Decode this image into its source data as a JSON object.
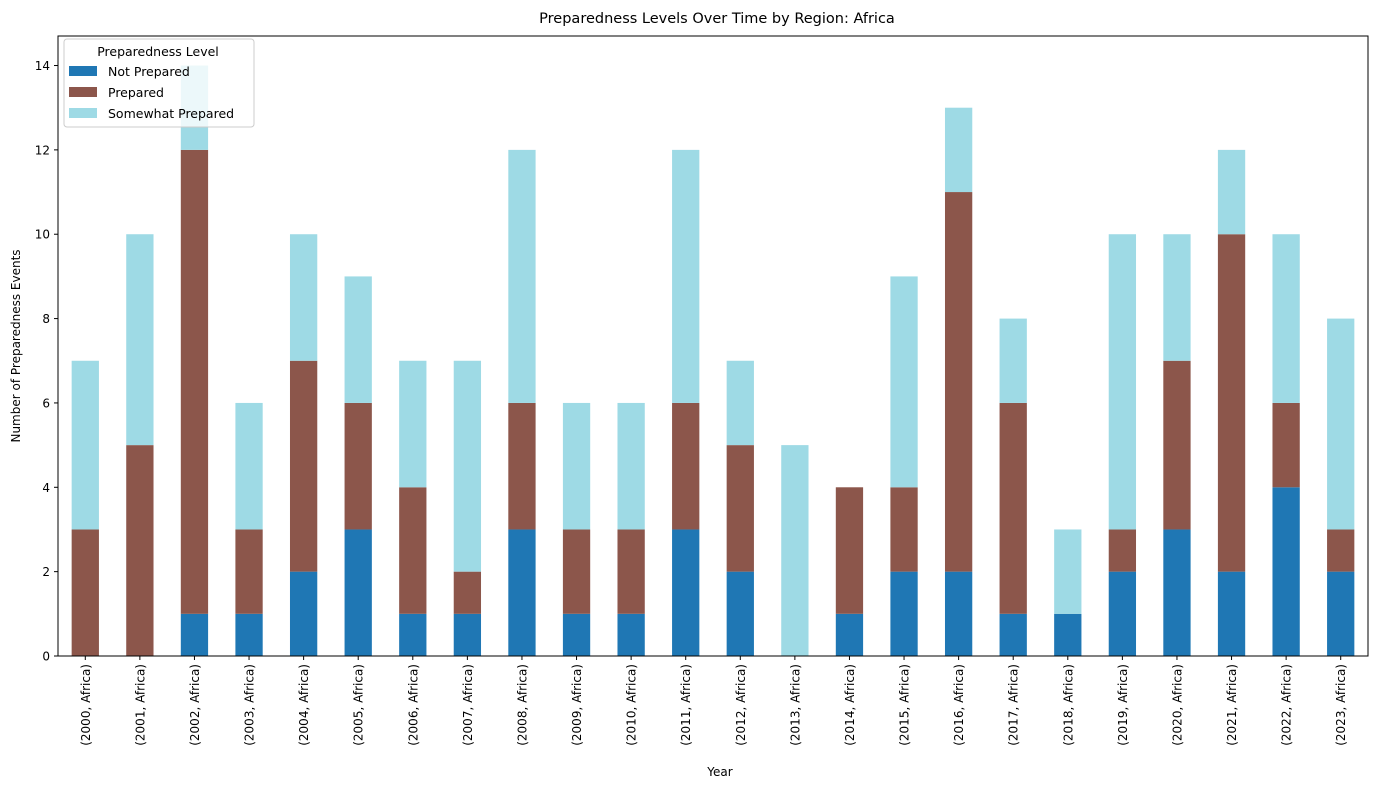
{
  "chart_data": {
    "type": "bar",
    "stacked": true,
    "title": "Preparedness Levels Over Time by Region: Africa",
    "xlabel": "Year",
    "ylabel": "Number of Preparedness Events",
    "ylim": [
      0,
      14.7
    ],
    "yticks": [
      0,
      2,
      4,
      6,
      8,
      10,
      12,
      14
    ],
    "grid": false,
    "legend": {
      "title": "Preparedness Level",
      "placement": "upper-left"
    },
    "categories": [
      "(2000, Africa)",
      "(2001, Africa)",
      "(2002, Africa)",
      "(2003, Africa)",
      "(2004, Africa)",
      "(2005, Africa)",
      "(2006, Africa)",
      "(2007, Africa)",
      "(2008, Africa)",
      "(2009, Africa)",
      "(2010, Africa)",
      "(2011, Africa)",
      "(2012, Africa)",
      "(2013, Africa)",
      "(2014, Africa)",
      "(2015, Africa)",
      "(2016, Africa)",
      "(2017, Africa)",
      "(2018, Africa)",
      "(2019, Africa)",
      "(2020, Africa)",
      "(2021, Africa)",
      "(2022, Africa)",
      "(2023, Africa)"
    ],
    "series": [
      {
        "name": "Not Prepared",
        "color": "#1f77b4",
        "values": [
          0,
          0,
          1,
          1,
          2,
          3,
          1,
          1,
          3,
          1,
          1,
          3,
          2,
          0,
          1,
          2,
          2,
          1,
          1,
          2,
          3,
          2,
          4,
          2
        ]
      },
      {
        "name": "Prepared",
        "color": "#8c564b",
        "values": [
          3,
          5,
          11,
          2,
          5,
          3,
          3,
          1,
          3,
          2,
          2,
          3,
          3,
          0,
          3,
          2,
          9,
          5,
          0,
          1,
          4,
          8,
          2,
          1
        ]
      },
      {
        "name": "Somewhat Prepared",
        "color": "#9edae5",
        "values": [
          4,
          5,
          2,
          3,
          3,
          3,
          3,
          5,
          6,
          3,
          3,
          6,
          2,
          5,
          0,
          5,
          2,
          2,
          2,
          7,
          3,
          2,
          4,
          5
        ]
      }
    ]
  }
}
